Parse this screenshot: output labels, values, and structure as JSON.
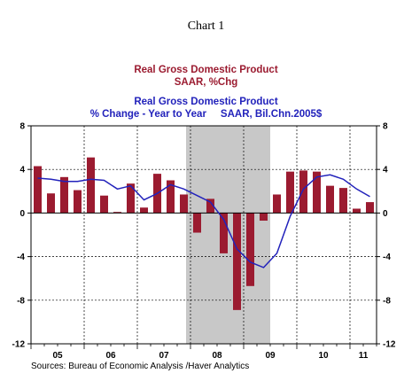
{
  "header": {
    "title": "Chart 1"
  },
  "legend": {
    "bar_title": "Real Gross Domestic Product",
    "bar_subtitle": "SAAR, %Chg",
    "line_title": "Real Gross Domestic Product",
    "line_subtitle": "% Change - Year to Year     SAAR, Bil.Chn.2005$",
    "bar_color": "#9b1b30",
    "line_color": "#2222bb"
  },
  "footer": {
    "source": "Sources:  Bureau of Economic Analysis /Haver Analytics"
  },
  "chart_data": {
    "type": "bar",
    "xlabel": "",
    "ylabel": "",
    "ylim": [
      -12,
      8
    ],
    "yticks": [
      8,
      4,
      0,
      -4,
      -8,
      -12
    ],
    "year_labels": [
      "05",
      "06",
      "07",
      "08",
      "09",
      "10",
      "11"
    ],
    "recession_shading": {
      "from": "2007-12",
      "to": "2009-06",
      "color": "#c8c8c8"
    },
    "grid": true,
    "series": [
      {
        "name": "Real Gross Domestic Product, SAAR, %Chg",
        "kind": "bar",
        "x": [
          "2005 Q1",
          "2005 Q2",
          "2005 Q3",
          "2005 Q4",
          "2006 Q1",
          "2006 Q2",
          "2006 Q3",
          "2006 Q4",
          "2007 Q1",
          "2007 Q2",
          "2007 Q3",
          "2007 Q4",
          "2008 Q1",
          "2008 Q2",
          "2008 Q3",
          "2008 Q4",
          "2009 Q1",
          "2009 Q2",
          "2009 Q3",
          "2009 Q4",
          "2010 Q1",
          "2010 Q2",
          "2010 Q3",
          "2010 Q4",
          "2011 Q1",
          "2011 Q2"
        ],
        "values": [
          4.3,
          1.8,
          3.3,
          2.1,
          5.1,
          1.6,
          0.1,
          2.7,
          0.5,
          3.6,
          3.0,
          1.7,
          -1.8,
          1.3,
          -3.7,
          -8.9,
          -6.7,
          -0.7,
          1.7,
          3.8,
          3.9,
          3.8,
          2.5,
          2.3,
          0.4,
          1.0
        ]
      },
      {
        "name": "Real Gross Domestic Product, % Change - Year to Year, SAAR, Bil.Chn.2005$",
        "kind": "line",
        "x": [
          "2005 Q1",
          "2005 Q2",
          "2005 Q3",
          "2005 Q4",
          "2006 Q1",
          "2006 Q2",
          "2006 Q3",
          "2006 Q4",
          "2007 Q1",
          "2007 Q2",
          "2007 Q3",
          "2007 Q4",
          "2008 Q1",
          "2008 Q2",
          "2008 Q3",
          "2008 Q4",
          "2009 Q1",
          "2009 Q2",
          "2009 Q3",
          "2009 Q4",
          "2010 Q1",
          "2010 Q2",
          "2010 Q3",
          "2010 Q4",
          "2011 Q1",
          "2011 Q2"
        ],
        "values": [
          3.2,
          3.1,
          2.9,
          2.9,
          3.1,
          3.0,
          2.2,
          2.5,
          1.2,
          1.8,
          2.6,
          2.2,
          1.6,
          1.0,
          -0.6,
          -3.3,
          -4.5,
          -5.0,
          -3.7,
          -0.3,
          2.2,
          3.3,
          3.5,
          3.1,
          2.2,
          1.5
        ]
      }
    ]
  }
}
